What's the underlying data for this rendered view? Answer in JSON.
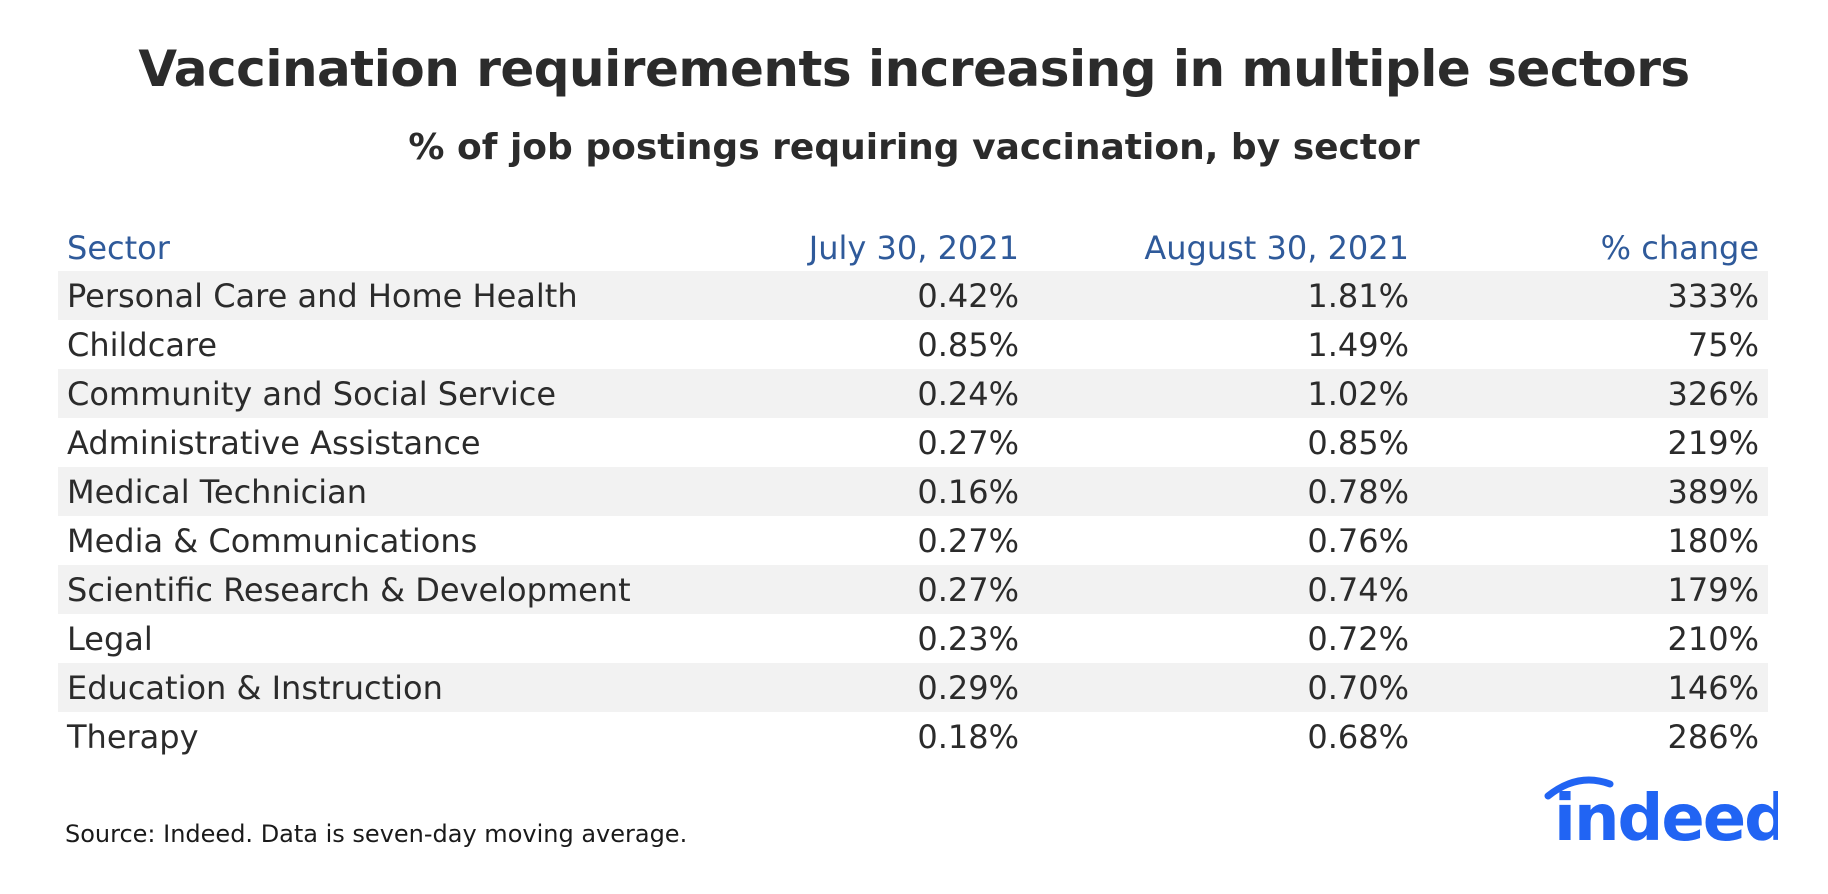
{
  "chart_data": {
    "type": "table",
    "title": "Vaccination requirements increasing in multiple sectors",
    "subtitle": "% of job postings requiring vaccination, by sector",
    "columns": [
      "Sector",
      "July 30, 2021",
      "August 30, 2021",
      "% change"
    ],
    "rows": [
      [
        "Personal Care and Home Health",
        "0.42%",
        "1.81%",
        "333%"
      ],
      [
        "Childcare",
        "0.85%",
        "1.49%",
        "75%"
      ],
      [
        "Community and Social Service",
        "0.24%",
        "1.02%",
        "326%"
      ],
      [
        "Administrative Assistance",
        "0.27%",
        "0.85%",
        "219%"
      ],
      [
        "Medical Technician",
        "0.16%",
        "0.78%",
        "389%"
      ],
      [
        "Media & Communications",
        "0.27%",
        "0.76%",
        "180%"
      ],
      [
        "Scientific Research & Development",
        "0.27%",
        "0.74%",
        "179%"
      ],
      [
        "Legal",
        "0.23%",
        "0.72%",
        "210%"
      ],
      [
        "Education & Instruction",
        "0.29%",
        "0.70%",
        "146%"
      ],
      [
        "Therapy",
        "0.18%",
        "0.68%",
        "286%"
      ]
    ],
    "source": "Source: Indeed. Data is seven-day moving average."
  },
  "logo": {
    "text": "indeed",
    "color": "#2164f3"
  },
  "colors": {
    "header_text": "#2f5a9a",
    "stripe": "#f2f2f2",
    "text": "#2b2b2b"
  }
}
